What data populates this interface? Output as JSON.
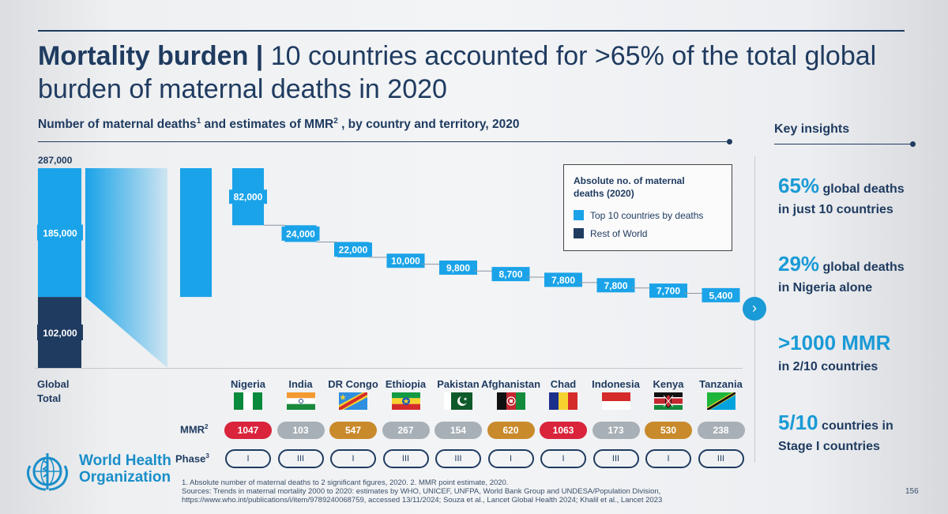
{
  "slide": {
    "title_bold": "Mortality burden",
    "title_sep": " | ",
    "title_rest": "10 countries accounted for >65% of the total global burden of maternal deaths in 2020",
    "subtitle_a": "Number of maternal deaths",
    "subtitle_sup1": "1",
    "subtitle_b": " and estimates of MMR",
    "subtitle_sup2": "2",
    "subtitle_c": " , by country and territory, 2020",
    "key_insights_title": "Key insights",
    "mmr_label": "MMR",
    "mmr_sup": "2",
    "phase_label": "Phase",
    "phase_sup": "3",
    "org_line1": "World Health",
    "org_line2": "Organization",
    "footnote1": "1. Absolute number of maternal deaths to 2 significant figures, 2020. 2. MMR point estimate, 2020.",
    "footnote2": "Sources:  Trends in maternal mortality 2000 to 2020: estimates by WHO, UNICEF, UNFPA, World Bank Group and UNDESA/Population Division,",
    "footnote3": "https://www.who.int/publications/i/item/9789240068759, accessed 13/11/2024; Souza et al., Lancet Global Health 2024; Khalil et al., Lancet 2023",
    "page_number": "156"
  },
  "insights": [
    {
      "big": "65%",
      "text1": " global deaths",
      "text2": "in just 10 countries"
    },
    {
      "big": "29%",
      "text1": " global deaths",
      "text2": "in Nigeria alone"
    },
    {
      "big": ">1000 MMR",
      "text1": "",
      "text2": "in 2/10 countries"
    },
    {
      "big": "5/10",
      "text1": " countries in",
      "text2": "Stage I countries"
    }
  ],
  "legend": {
    "title": "Absolute no. of maternal deaths (2020)",
    "top10": "Top 10 countries by deaths",
    "rest": "Rest of World"
  },
  "colors": {
    "top10": "#1aa3e8",
    "rest": "#1f3b60",
    "mmr_red": "#d9243b",
    "mmr_orange": "#c98a2c",
    "mmr_grey": "#a7b0b6",
    "accent": "#1a9ad6"
  },
  "chart_data": {
    "type": "bar",
    "global": {
      "label": "Global\nTotal",
      "total": 287000,
      "total_label": "287,000",
      "top10": 185000,
      "top10_label": "185,000",
      "rest": 102000,
      "rest_label": "102,000"
    },
    "categories": [
      "Nigeria",
      "India",
      "DR Congo",
      "Ethiopia",
      "Pakistan",
      "Afghanistan",
      "Chad",
      "Indonesia",
      "Kenya",
      "Tanzania"
    ],
    "values": [
      82000,
      24000,
      22000,
      10000,
      9800,
      8700,
      7800,
      7800,
      7700,
      5400
    ],
    "value_labels": [
      "82,000",
      "24,000",
      "22,000",
      "10,000",
      "9,800",
      "8,700",
      "7,800",
      "7,800",
      "7,700",
      "5,400"
    ],
    "mmr": [
      1047,
      103,
      547,
      267,
      154,
      620,
      1063,
      173,
      530,
      238
    ],
    "mmr_color": [
      "red",
      "grey",
      "orange",
      "grey",
      "grey",
      "orange",
      "red",
      "grey",
      "orange",
      "grey"
    ],
    "phase": [
      "I",
      "III",
      "I",
      "III",
      "III",
      "I",
      "I",
      "III",
      "I",
      "III"
    ]
  }
}
